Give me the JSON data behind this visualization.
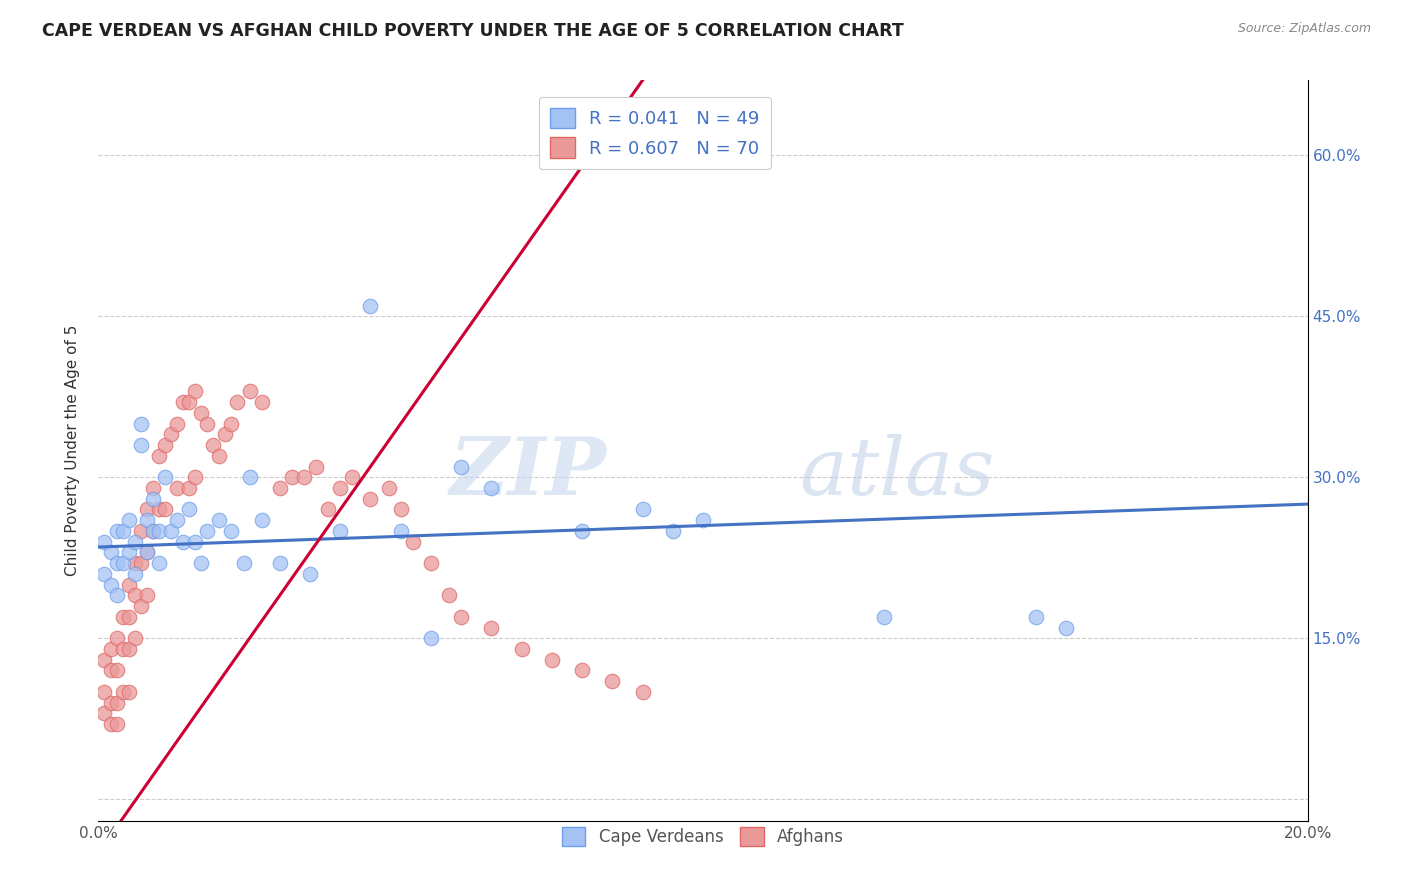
{
  "title": "CAPE VERDEAN VS AFGHAN CHILD POVERTY UNDER THE AGE OF 5 CORRELATION CHART",
  "source": "Source: ZipAtlas.com",
  "ylabel": "Child Poverty Under the Age of 5",
  "yticks": [
    0.0,
    0.15,
    0.3,
    0.45,
    0.6
  ],
  "xlim": [
    0.0,
    0.2
  ],
  "ylim": [
    -0.02,
    0.67
  ],
  "legend_cv_r": "R = 0.041",
  "legend_cv_n": "N = 49",
  "legend_af_r": "R = 0.607",
  "legend_af_n": "N = 70",
  "cv_color": "#a4c2f4",
  "af_color": "#ea9999",
  "cv_edge_color": "#6d9eeb",
  "af_edge_color": "#e06666",
  "cv_line_color": "#4472c4",
  "af_line_color": "#cc0033",
  "watermark_zip": "ZIP",
  "watermark_atlas": "atlas",
  "cv_points_x": [
    0.001,
    0.001,
    0.002,
    0.002,
    0.003,
    0.003,
    0.003,
    0.004,
    0.004,
    0.005,
    0.005,
    0.006,
    0.006,
    0.007,
    0.007,
    0.008,
    0.008,
    0.009,
    0.009,
    0.01,
    0.01,
    0.011,
    0.012,
    0.013,
    0.014,
    0.015,
    0.016,
    0.017,
    0.018,
    0.02,
    0.022,
    0.024,
    0.025,
    0.027,
    0.03,
    0.035,
    0.04,
    0.045,
    0.05,
    0.055,
    0.06,
    0.065,
    0.08,
    0.09,
    0.095,
    0.1,
    0.13,
    0.155,
    0.16
  ],
  "cv_points_y": [
    0.24,
    0.21,
    0.23,
    0.2,
    0.25,
    0.22,
    0.19,
    0.25,
    0.22,
    0.26,
    0.23,
    0.24,
    0.21,
    0.35,
    0.33,
    0.26,
    0.23,
    0.28,
    0.25,
    0.25,
    0.22,
    0.3,
    0.25,
    0.26,
    0.24,
    0.27,
    0.24,
    0.22,
    0.25,
    0.26,
    0.25,
    0.22,
    0.3,
    0.26,
    0.22,
    0.21,
    0.25,
    0.46,
    0.25,
    0.15,
    0.31,
    0.29,
    0.25,
    0.27,
    0.25,
    0.26,
    0.17,
    0.17,
    0.16
  ],
  "af_points_x": [
    0.001,
    0.001,
    0.001,
    0.002,
    0.002,
    0.002,
    0.002,
    0.003,
    0.003,
    0.003,
    0.003,
    0.004,
    0.004,
    0.004,
    0.005,
    0.005,
    0.005,
    0.005,
    0.006,
    0.006,
    0.006,
    0.007,
    0.007,
    0.007,
    0.008,
    0.008,
    0.008,
    0.009,
    0.009,
    0.01,
    0.01,
    0.011,
    0.011,
    0.012,
    0.013,
    0.013,
    0.014,
    0.015,
    0.015,
    0.016,
    0.016,
    0.017,
    0.018,
    0.019,
    0.02,
    0.021,
    0.022,
    0.023,
    0.025,
    0.027,
    0.03,
    0.032,
    0.034,
    0.036,
    0.038,
    0.04,
    0.042,
    0.045,
    0.048,
    0.05,
    0.052,
    0.055,
    0.058,
    0.06,
    0.065,
    0.07,
    0.075,
    0.08,
    0.085,
    0.09
  ],
  "af_points_y": [
    0.1,
    0.13,
    0.08,
    0.14,
    0.12,
    0.09,
    0.07,
    0.15,
    0.12,
    0.09,
    0.07,
    0.17,
    0.14,
    0.1,
    0.2,
    0.17,
    0.14,
    0.1,
    0.22,
    0.19,
    0.15,
    0.25,
    0.22,
    0.18,
    0.27,
    0.23,
    0.19,
    0.29,
    0.25,
    0.32,
    0.27,
    0.33,
    0.27,
    0.34,
    0.35,
    0.29,
    0.37,
    0.37,
    0.29,
    0.38,
    0.3,
    0.36,
    0.35,
    0.33,
    0.32,
    0.34,
    0.35,
    0.37,
    0.38,
    0.37,
    0.29,
    0.3,
    0.3,
    0.31,
    0.27,
    0.29,
    0.3,
    0.28,
    0.29,
    0.27,
    0.24,
    0.22,
    0.19,
    0.17,
    0.16,
    0.14,
    0.13,
    0.12,
    0.11,
    0.1
  ]
}
